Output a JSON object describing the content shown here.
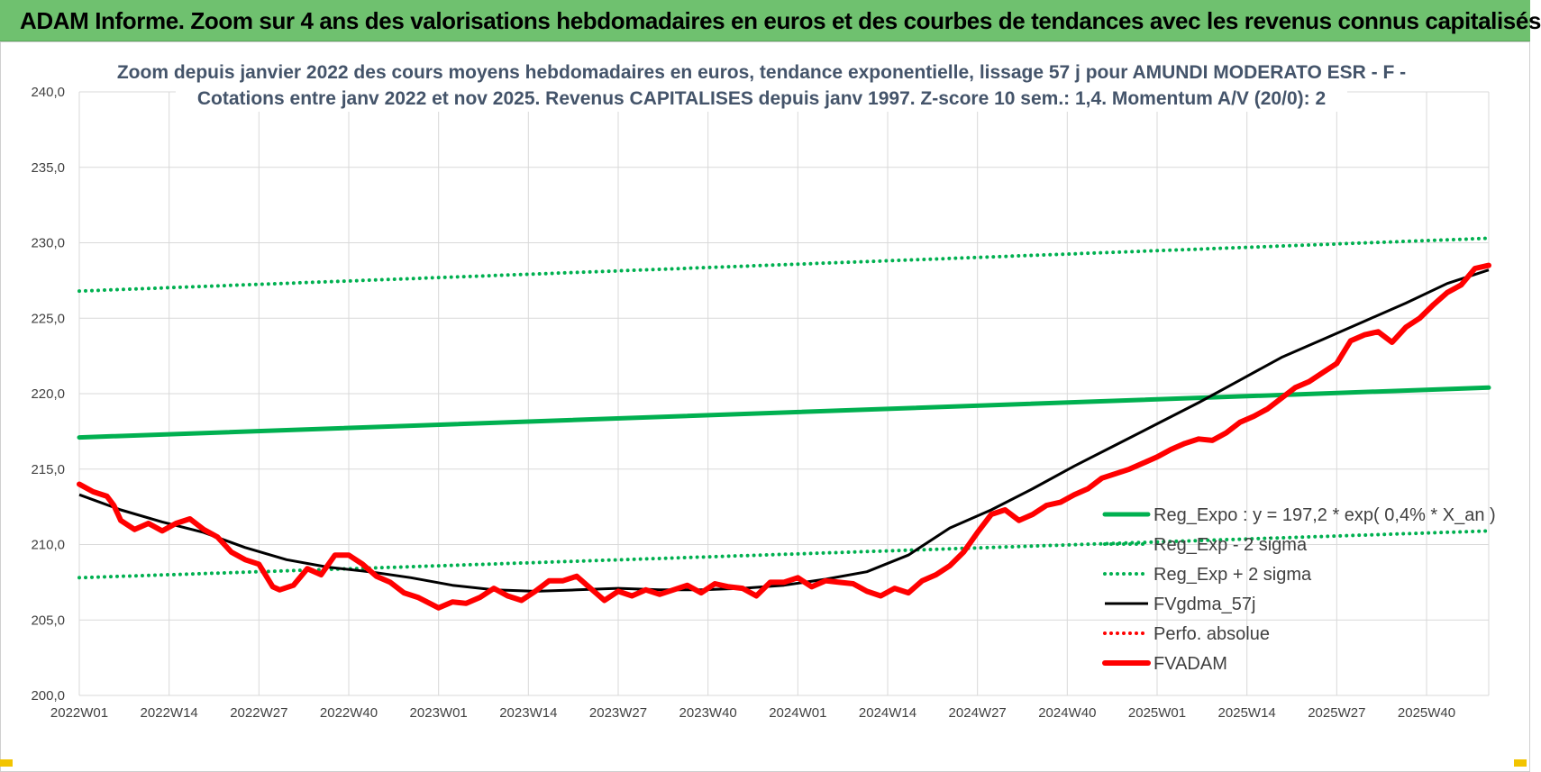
{
  "banner": {
    "title": "ADAM Informe. Zoom sur 4 ans des valorisations hebdomadaires en euros et des courbes de tendances avec les revenus connus capitalisés"
  },
  "chart_data": {
    "type": "line",
    "title_lines": [
      "Zoom depuis janvier 2022 des cours moyens hebdomadaires en euros, tendance exponentielle, lissage 57 j pour AMUNDI MODERATO ESR - F -",
      "Cotations entre janv 2022 et nov 2025. Revenus CAPITALISES depuis janv 1997. Z-score 10 sem.: 1,4. Momentum A/V (20/0): 2"
    ],
    "xlabel": "",
    "ylabel": "",
    "ylim": [
      200,
      240
    ],
    "yticks": [
      "240,0",
      "235,0",
      "230,0",
      "225,0",
      "220,0",
      "215,0",
      "210,0",
      "205,0",
      "200,0"
    ],
    "xticks": [
      "2022W01",
      "2022W14",
      "2022W27",
      "2022W40",
      "2023W01",
      "2023W14",
      "2023W27",
      "2023W40",
      "2024W01",
      "2024W14",
      "2024W27",
      "2024W40",
      "2025W01",
      "2025W14",
      "2025W27",
      "2025W40"
    ],
    "x_start_week_label": "2022W01",
    "x_end_week_index": 204,
    "grid": true,
    "legend_position": "right",
    "series": [
      {
        "name": "Reg_Expo : y = 197,2 * exp( 0,4% *  X_an )",
        "color": "#00b050",
        "style": "solid-thick",
        "x": [
          0,
          204
        ],
        "values": [
          217.1,
          220.4
        ]
      },
      {
        "name": "Reg_Exp - 2 sigma",
        "color": "#00b050",
        "style": "dotted",
        "x": [
          0,
          204
        ],
        "values": [
          207.8,
          210.9
        ]
      },
      {
        "name": "Reg_Exp + 2 sigma",
        "color": "#00b050",
        "style": "dotted",
        "x": [
          0,
          204
        ],
        "values": [
          226.8,
          230.3
        ]
      },
      {
        "name": "FVgdma_57j",
        "color": "#000000",
        "style": "solid",
        "x": [
          0,
          6,
          12,
          18,
          24,
          30,
          36,
          42,
          48,
          54,
          60,
          66,
          72,
          78,
          84,
          90,
          96,
          102,
          108,
          114,
          120,
          126,
          132,
          138,
          144,
          150,
          156,
          162,
          168,
          174,
          180,
          186,
          192,
          198,
          204
        ],
        "values": [
          213.3,
          212.3,
          211.5,
          210.8,
          209.8,
          209.0,
          208.5,
          208.2,
          207.8,
          207.3,
          207.0,
          206.9,
          207.0,
          207.1,
          207.0,
          207.0,
          207.1,
          207.3,
          207.7,
          208.2,
          209.3,
          211.1,
          212.3,
          213.7,
          215.2,
          216.6,
          218.0,
          219.4,
          220.9,
          222.4,
          223.6,
          224.8,
          226.0,
          227.3,
          228.2
        ]
      },
      {
        "name": "Perfo. absolue",
        "color": "#ff0000",
        "style": "dotted",
        "x": [],
        "values": []
      },
      {
        "name": "FVADAM",
        "color": "#ff0000",
        "style": "solid-thick",
        "x": [
          0,
          2,
          4,
          5,
          6,
          8,
          10,
          12,
          14,
          16,
          18,
          20,
          22,
          24,
          26,
          28,
          29,
          31,
          33,
          35,
          37,
          39,
          41,
          43,
          45,
          47,
          49,
          52,
          54,
          56,
          58,
          60,
          62,
          64,
          66,
          68,
          70,
          72,
          74,
          76,
          78,
          80,
          82,
          84,
          86,
          88,
          90,
          92,
          94,
          96,
          98,
          100,
          102,
          104,
          106,
          108,
          110,
          112,
          114,
          116,
          118,
          120,
          122,
          124,
          126,
          128,
          130,
          132,
          134,
          136,
          138,
          140,
          142,
          144,
          146,
          148,
          150,
          152,
          154,
          156,
          158,
          160,
          162,
          164,
          166,
          168,
          170,
          172,
          174,
          176,
          178,
          180,
          182,
          184,
          186,
          188,
          190,
          192,
          194,
          196,
          198,
          200,
          202,
          204
        ],
        "values": [
          214.0,
          213.5,
          213.2,
          212.6,
          211.6,
          211.0,
          211.4,
          210.9,
          211.4,
          211.7,
          211.0,
          210.5,
          209.5,
          209.0,
          208.7,
          207.2,
          207.0,
          207.3,
          208.4,
          208.0,
          209.3,
          209.3,
          208.7,
          207.9,
          207.5,
          206.8,
          206.5,
          205.8,
          206.2,
          206.1,
          206.5,
          207.1,
          206.6,
          206.3,
          206.9,
          207.6,
          207.6,
          207.9,
          207.1,
          206.3,
          206.9,
          206.6,
          207.0,
          206.7,
          207.0,
          207.3,
          206.8,
          207.4,
          207.2,
          207.1,
          206.6,
          207.5,
          207.5,
          207.8,
          207.2,
          207.6,
          207.5,
          207.4,
          206.9,
          206.6,
          207.1,
          206.8,
          207.6,
          208.0,
          208.6,
          209.5,
          210.8,
          212.0,
          212.3,
          211.6,
          212.0,
          212.6,
          212.8,
          213.3,
          213.7,
          214.4,
          214.7,
          215.0,
          215.4,
          215.8,
          216.3,
          216.7,
          217.0,
          216.9,
          217.4,
          218.1,
          218.5,
          219.0,
          219.7,
          220.4,
          220.8,
          221.4,
          222.0,
          223.5,
          223.9,
          224.1,
          223.4,
          224.4,
          225.0,
          225.9,
          226.7,
          227.2,
          228.3,
          228.5
        ]
      }
    ]
  }
}
